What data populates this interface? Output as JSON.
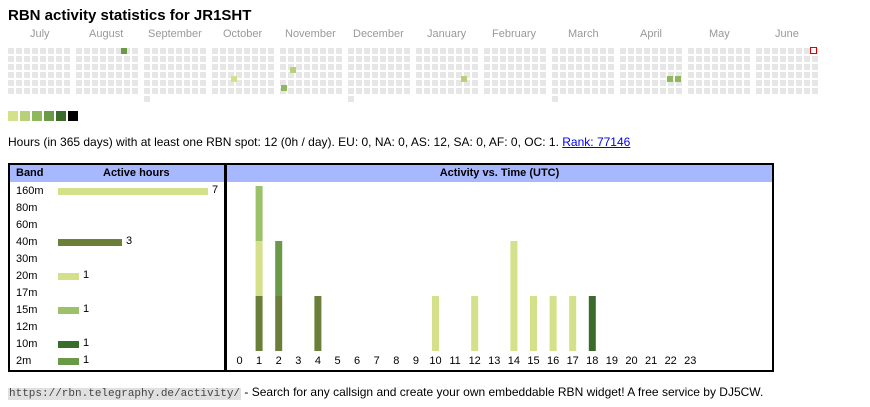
{
  "title": "RBN activity statistics for JR1SHT",
  "months": [
    "July",
    "August",
    "September",
    "October",
    "November",
    "December",
    "January",
    "February",
    "March",
    "April",
    "May",
    "June"
  ],
  "colors": {
    "empty_day": "#e6e6e6",
    "today_marker": "#dd0000",
    "header_bg": "#a8b8ff",
    "link": "#0000ee",
    "band_160m": "#d4e08a",
    "band_40m": "#6b7f3a",
    "band_20m": "#d4e08a",
    "band_15m": "#9dc06a",
    "band_10m": "#3b6b2a",
    "band_2m": "#6a9a48"
  },
  "legend": [
    "#d4e08a",
    "#b8d07a",
    "#8fb85c",
    "#6a9a48",
    "#3b6b2a",
    "#000000"
  ],
  "summary": {
    "text": "Hours (in 365 days) with at least one RBN spot: 12 (0h / day). EU: 0, NA: 0, AS: 12, SA: 0, AF: 0, OC: 1.",
    "rank_link": "Rank: 77146"
  },
  "band_table": {
    "header_band": "Band",
    "header_hours": "Active hours",
    "max_hours": 7,
    "rows": [
      {
        "band": "160m",
        "hours": 7,
        "count": "7",
        "color": "#d4e08a"
      },
      {
        "band": "80m",
        "hours": 0,
        "count": "",
        "color": ""
      },
      {
        "band": "60m",
        "hours": 0,
        "count": "",
        "color": ""
      },
      {
        "band": "40m",
        "hours": 3,
        "count": "3",
        "color": "#6b7f3a"
      },
      {
        "band": "30m",
        "hours": 0,
        "count": "",
        "color": ""
      },
      {
        "band": "20m",
        "hours": 1,
        "count": "1",
        "color": "#d4e08a"
      },
      {
        "band": "17m",
        "hours": 0,
        "count": "",
        "color": ""
      },
      {
        "band": "15m",
        "hours": 1,
        "count": "1",
        "color": "#9dc06a"
      },
      {
        "band": "12m",
        "hours": 0,
        "count": "",
        "color": ""
      },
      {
        "band": "10m",
        "hours": 1,
        "count": "1",
        "color": "#3b6b2a"
      },
      {
        "band": "2m",
        "hours": 1,
        "count": "1",
        "color": "#6a9a48"
      }
    ]
  },
  "chart_data": {
    "type": "bar",
    "title": "Activity vs. Time (UTC)",
    "categories": [
      "0",
      "1",
      "2",
      "3",
      "4",
      "5",
      "6",
      "7",
      "8",
      "9",
      "10",
      "11",
      "12",
      "13",
      "14",
      "15",
      "16",
      "17",
      "18",
      "19",
      "20",
      "21",
      "22",
      "23"
    ],
    "stacks": [
      {
        "hour": 1,
        "segments": [
          {
            "color": "#6b7f3a",
            "units": 1
          },
          {
            "color": "#d4e08a",
            "units": 1
          },
          {
            "color": "#9dc06a",
            "units": 1
          }
        ]
      },
      {
        "hour": 2,
        "segments": [
          {
            "color": "#6b7f3a",
            "units": 1
          },
          {
            "color": "#6a9a48",
            "units": 1
          }
        ]
      },
      {
        "hour": 4,
        "segments": [
          {
            "color": "#6b7f3a",
            "units": 1
          }
        ]
      },
      {
        "hour": 10,
        "segments": [
          {
            "color": "#d4e08a",
            "units": 1
          }
        ]
      },
      {
        "hour": 12,
        "segments": [
          {
            "color": "#d4e08a",
            "units": 1
          }
        ]
      },
      {
        "hour": 14,
        "segments": [
          {
            "color": "#d4e08a",
            "units": 2
          }
        ]
      },
      {
        "hour": 15,
        "segments": [
          {
            "color": "#d4e08a",
            "units": 1
          }
        ]
      },
      {
        "hour": 16,
        "segments": [
          {
            "color": "#d4e08a",
            "units": 1
          }
        ]
      },
      {
        "hour": 17,
        "segments": [
          {
            "color": "#d4e08a",
            "units": 1
          }
        ]
      },
      {
        "hour": 18,
        "segments": [
          {
            "color": "#3b6b2a",
            "units": 1
          }
        ]
      }
    ],
    "ylim": [
      0,
      3
    ]
  },
  "footer": {
    "url": "https://rbn.telegraphy.de/activity/",
    "text": " - Search for any callsign and create your own embeddable RBN widget! A free service by DJ5CW."
  }
}
